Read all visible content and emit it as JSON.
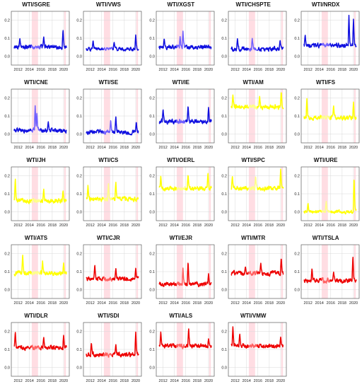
{
  "chart_data": {
    "type": "line",
    "layout": "multi-panel grid, 5 columns",
    "x_range": [
      2010.8,
      2021.0
    ],
    "x_ticks": [
      "2012",
      "2014",
      "2016",
      "2018",
      "2020"
    ],
    "grid": true,
    "shaded_region": {
      "x_start": 2014.4,
      "x_end": 2015.5,
      "color": "#ffdde3"
    },
    "shaded_region_2": {
      "x_start": 2020.1,
      "x_end": 2020.4,
      "color": "#ffdde3"
    },
    "colors": {
      "blue": "#1010e0",
      "blue_highlight": "#7060ff",
      "yellow": "#ffff00",
      "yellow_highlight": "#ffff88",
      "red": "#ee0000",
      "red_highlight": "#ff6060"
    },
    "panels": [
      {
        "title": "WTI/SGRE",
        "color": "blue",
        "y_ticks": [
          "0.0",
          "0.1",
          "0.2"
        ],
        "ylim": [
          -0.05,
          0.25
        ],
        "base": 0.05,
        "vol": 0.02,
        "spikes": [
          [
            2019.9,
            0.15
          ],
          [
            2016.5,
            0.11
          ],
          [
            2012.3,
            0.1
          ]
        ]
      },
      {
        "title": "WTI/VWS",
        "color": "blue",
        "y_ticks": [
          "0.0",
          "0.1",
          "0.2"
        ],
        "ylim": [
          -0.05,
          0.25
        ],
        "base": 0.04,
        "vol": 0.015,
        "spikes": [
          [
            2020.0,
            0.12
          ],
          [
            2012.5,
            0.09
          ],
          [
            2016.2,
            0.08
          ]
        ]
      },
      {
        "title": "WTI/XGST",
        "color": "blue",
        "y_ticks": [
          "0.0",
          "0.1",
          "0.2"
        ],
        "ylim": [
          -0.05,
          0.25
        ],
        "base": 0.05,
        "vol": 0.02,
        "spikes": [
          [
            2015.5,
            0.14
          ],
          [
            2015.0,
            0.11
          ],
          [
            2012.2,
            0.1
          ]
        ]
      },
      {
        "title": "WTI/CHSPTE",
        "color": "blue",
        "y_ticks": [
          "0.0",
          "0.1",
          "0.2"
        ],
        "ylim": [
          -0.05,
          0.25
        ],
        "base": 0.04,
        "vol": 0.02,
        "spikes": [
          [
            2015.0,
            0.1
          ],
          [
            2012.4,
            0.1
          ],
          [
            2019.9,
            0.09
          ]
        ]
      },
      {
        "title": "WTI/NRDX",
        "color": "blue",
        "y_ticks": [
          "0.0",
          "0.1",
          "0.2"
        ],
        "ylim": [
          -0.05,
          0.25
        ],
        "base": 0.06,
        "vol": 0.02,
        "spikes": [
          [
            2019.2,
            0.23
          ],
          [
            2020.0,
            0.21
          ],
          [
            2011.5,
            0.12
          ]
        ]
      },
      {
        "title": "WTI/CNE",
        "color": "blue",
        "y_ticks": [
          "0.0",
          "0.1",
          "0.2"
        ],
        "ylim": [
          -0.05,
          0.25
        ],
        "base": 0.02,
        "vol": 0.02,
        "spikes": [
          [
            2015.0,
            0.16
          ],
          [
            2015.3,
            0.12
          ],
          [
            2017.3,
            0.07
          ]
        ]
      },
      {
        "title": "WTI/SE",
        "color": "blue",
        "y_ticks": [
          "0.0",
          "0.1",
          "0.2"
        ],
        "ylim": [
          -0.05,
          0.25
        ],
        "base": 0.01,
        "vol": 0.02,
        "spikes": [
          [
            2016.5,
            0.1
          ],
          [
            2015.6,
            0.08
          ],
          [
            2020.1,
            0.07
          ]
        ]
      },
      {
        "title": "WTI/IE",
        "color": "blue",
        "y_ticks": [
          "0.0",
          "0.1",
          "0.2"
        ],
        "ylim": [
          -0.05,
          0.25
        ],
        "base": 0.07,
        "vol": 0.02,
        "spikes": [
          [
            2016.4,
            0.16
          ],
          [
            2020.0,
            0.15
          ],
          [
            2012.0,
            0.14
          ]
        ]
      },
      {
        "title": "WTI/AM",
        "color": "yellow",
        "y_ticks": [
          "0.0",
          "0.1",
          "0.2"
        ],
        "ylim": [
          -0.05,
          0.25
        ],
        "base": 0.15,
        "vol": 0.02,
        "spikes": [
          [
            2020.1,
            0.24
          ],
          [
            2011.6,
            0.22
          ],
          [
            2016.3,
            0.21
          ]
        ]
      },
      {
        "title": "WTI/FS",
        "color": "yellow",
        "y_ticks": [
          "0.0",
          "0.1",
          "0.2"
        ],
        "ylim": [
          -0.05,
          0.25
        ],
        "base": 0.09,
        "vol": 0.02,
        "spikes": [
          [
            2011.8,
            0.2
          ],
          [
            2020.0,
            0.18
          ],
          [
            2016.5,
            0.16
          ]
        ]
      },
      {
        "title": "WTI/JH",
        "color": "yellow",
        "y_ticks": [
          "0.0",
          "0.1",
          "0.2"
        ],
        "ylim": [
          -0.05,
          0.25
        ],
        "base": 0.06,
        "vol": 0.02,
        "spikes": [
          [
            2011.5,
            0.19
          ],
          [
            2016.5,
            0.13
          ],
          [
            2019.9,
            0.12
          ]
        ]
      },
      {
        "title": "WTI/CS",
        "color": "yellow",
        "y_ticks": [
          "0.0",
          "0.1",
          "0.2"
        ],
        "ylim": [
          -0.05,
          0.25
        ],
        "base": 0.07,
        "vol": 0.02,
        "spikes": [
          [
            2015.2,
            0.16
          ],
          [
            2016.5,
            0.17
          ],
          [
            2011.6,
            0.15
          ]
        ]
      },
      {
        "title": "WTI/OERL",
        "color": "yellow",
        "y_ticks": [
          "0.0",
          "0.1",
          "0.2"
        ],
        "ylim": [
          -0.05,
          0.25
        ],
        "base": 0.13,
        "vol": 0.02,
        "spikes": [
          [
            2011.6,
            0.2
          ],
          [
            2016.4,
            0.21
          ],
          [
            2019.9,
            0.22
          ]
        ]
      },
      {
        "title": "WTI/SPC",
        "color": "yellow",
        "y_ticks": [
          "0.0",
          "0.1",
          "0.2"
        ],
        "ylim": [
          -0.05,
          0.25
        ],
        "base": 0.13,
        "vol": 0.02,
        "spikes": [
          [
            2020.0,
            0.24
          ],
          [
            2015.6,
            0.2
          ],
          [
            2011.5,
            0.2
          ]
        ]
      },
      {
        "title": "WTI/URE",
        "color": "yellow",
        "y_ticks": [
          "0.0",
          "0.1",
          "0.2"
        ],
        "ylim": [
          -0.05,
          0.25
        ],
        "base": 0.0,
        "vol": 0.015,
        "spikes": [
          [
            2020.1,
            0.2
          ],
          [
            2015.2,
            0.06
          ],
          [
            2012.0,
            0.05
          ]
        ]
      },
      {
        "title": "WTI/ATS",
        "color": "yellow",
        "y_ticks": [
          "0.0",
          "0.1",
          "0.2"
        ],
        "ylim": [
          -0.05,
          0.25
        ],
        "base": 0.09,
        "vol": 0.02,
        "spikes": [
          [
            2012.8,
            0.2
          ],
          [
            2016.3,
            0.16
          ],
          [
            2020.0,
            0.15
          ]
        ]
      },
      {
        "title": "WTI/CJR",
        "color": "red",
        "y_ticks": [
          "0.0",
          "0.1",
          "0.2"
        ],
        "ylim": [
          -0.05,
          0.25
        ],
        "base": 0.06,
        "vol": 0.02,
        "spikes": [
          [
            2012.8,
            0.14
          ],
          [
            2016.5,
            0.12
          ],
          [
            2020.0,
            0.12
          ]
        ]
      },
      {
        "title": "WTI/EJR",
        "color": "red",
        "y_ticks": [
          "0.0",
          "0.1",
          "0.2"
        ],
        "ylim": [
          -0.05,
          0.25
        ],
        "base": 0.03,
        "vol": 0.02,
        "spikes": [
          [
            2016.4,
            0.16
          ],
          [
            2015.5,
            0.12
          ],
          [
            2020.0,
            0.09
          ]
        ]
      },
      {
        "title": "WTI/MTR",
        "color": "red",
        "y_ticks": [
          "0.0",
          "0.1",
          "0.2"
        ],
        "ylim": [
          -0.05,
          0.25
        ],
        "base": 0.09,
        "vol": 0.02,
        "spikes": [
          [
            2020.1,
            0.18
          ],
          [
            2016.5,
            0.15
          ],
          [
            2013.8,
            0.13
          ]
        ]
      },
      {
        "title": "WTI/TSLA",
        "color": "red",
        "y_ticks": [
          "0.0",
          "0.1",
          "0.2"
        ],
        "ylim": [
          -0.05,
          0.25
        ],
        "base": 0.05,
        "vol": 0.02,
        "spikes": [
          [
            2019.9,
            0.19
          ],
          [
            2012.7,
            0.12
          ],
          [
            2016.5,
            0.1
          ]
        ]
      },
      {
        "title": "WTI/DLR",
        "color": "red",
        "y_ticks": [
          "0.0",
          "0.1",
          "0.2"
        ],
        "ylim": [
          -0.05,
          0.25
        ],
        "base": 0.11,
        "vol": 0.02,
        "spikes": [
          [
            2011.5,
            0.2
          ],
          [
            2020.0,
            0.18
          ],
          [
            2016.5,
            0.17
          ]
        ]
      },
      {
        "title": "WTI/SDI",
        "color": "red",
        "y_ticks": [
          "0.0",
          "0.1",
          "0.2"
        ],
        "ylim": [
          -0.05,
          0.25
        ],
        "base": 0.07,
        "vol": 0.02,
        "spikes": [
          [
            2020.0,
            0.2
          ],
          [
            2012.2,
            0.14
          ],
          [
            2016.5,
            0.13
          ]
        ]
      },
      {
        "title": "WTI/ALS",
        "color": "red",
        "y_ticks": [
          "0.0",
          "0.1",
          "0.2"
        ],
        "ylim": [
          -0.05,
          0.25
        ],
        "base": 0.12,
        "vol": 0.02,
        "spikes": [
          [
            2016.5,
            0.22
          ],
          [
            2011.6,
            0.2
          ],
          [
            2020.0,
            0.16
          ]
        ]
      },
      {
        "title": "WTI/VMW",
        "color": "red",
        "y_ticks": [
          "0.0",
          "0.1",
          "0.2"
        ],
        "ylim": [
          -0.05,
          0.25
        ],
        "base": 0.12,
        "vol": 0.02,
        "spikes": [
          [
            2011.6,
            0.23
          ],
          [
            2012.8,
            0.19
          ],
          [
            2020.0,
            0.17
          ]
        ]
      }
    ]
  }
}
